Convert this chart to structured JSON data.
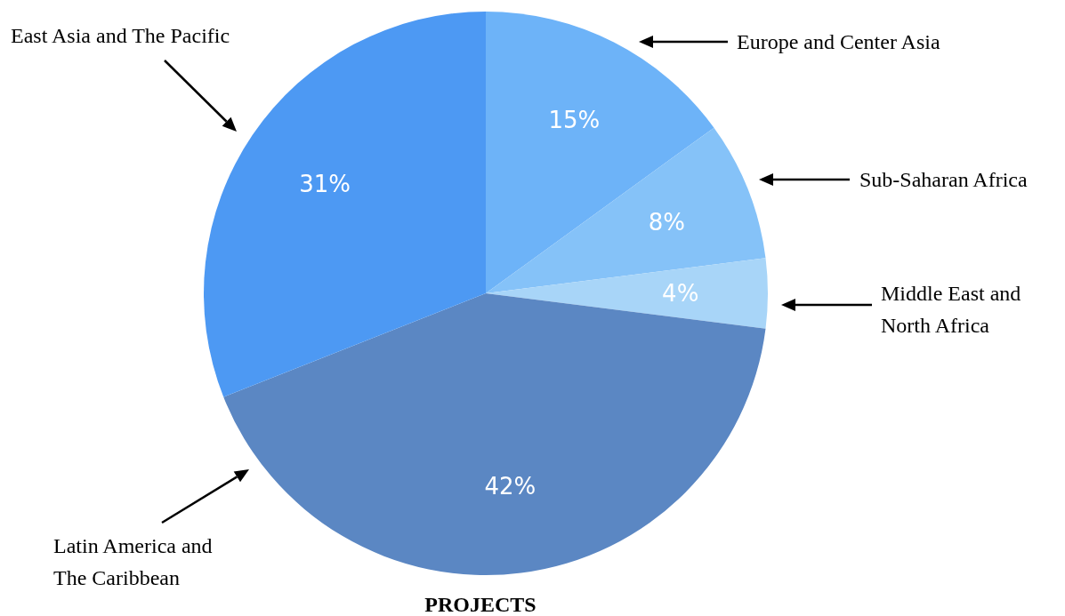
{
  "chart_data": {
    "type": "pie",
    "title": "PROJECTS",
    "categories": [
      "Europe and Center Asia",
      "Sub-Saharan Africa",
      "Middle East and North Africa",
      "Latin America and The Caribbean",
      "East Asia and The Pacific"
    ],
    "values": [
      15,
      8,
      4,
      42,
      31
    ],
    "value_labels": [
      "15%",
      "8%",
      "4%",
      "42%",
      "31%"
    ],
    "colors": [
      "#6db3f8",
      "#85c2f8",
      "#a8d5f8",
      "#5b87c3",
      "#4d99f3"
    ]
  }
}
